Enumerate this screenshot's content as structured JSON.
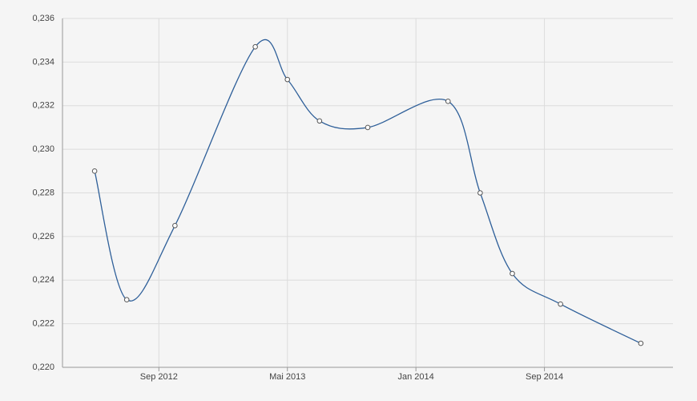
{
  "chart_data": {
    "type": "line",
    "x": [
      "2012-05",
      "2012-07",
      "2012-10",
      "2013-03",
      "2013-05",
      "2013-07",
      "2013-10",
      "2014-03",
      "2014-05",
      "2014-07",
      "2014-10",
      "2015-03"
    ],
    "series": [
      {
        "color": "#2e5f99",
        "values": [
          0.229,
          0.2231,
          0.2265,
          0.2347,
          0.2332,
          0.2313,
          0.231,
          0.2322,
          0.228,
          0.2243,
          0.2229,
          0.2211
        ]
      }
    ],
    "xlim": [
      "2012-03",
      "2015-05"
    ],
    "xticks": [
      {
        "value": "2012-09",
        "label": "Sep 2012"
      },
      {
        "value": "2013-05",
        "label": "Mai 2013"
      },
      {
        "value": "2014-01",
        "label": "Jan 2014"
      },
      {
        "value": "2014-09",
        "label": "Sep 2014"
      }
    ],
    "ylim": [
      0.22,
      0.236
    ],
    "yticks": [
      {
        "value": 0.22,
        "label": "0,220"
      },
      {
        "value": 0.222,
        "label": "0,222"
      },
      {
        "value": 0.224,
        "label": "0,224"
      },
      {
        "value": 0.226,
        "label": "0,226"
      },
      {
        "value": 0.228,
        "label": "0,228"
      },
      {
        "value": 0.23,
        "label": "0,230"
      },
      {
        "value": 0.232,
        "label": "0,232"
      },
      {
        "value": 0.234,
        "label": "0,234"
      },
      {
        "value": 0.236,
        "label": "0,236"
      }
    ],
    "grid": true
  }
}
